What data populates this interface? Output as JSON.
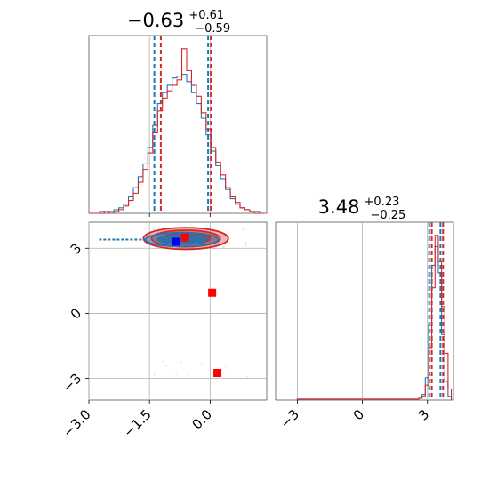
{
  "chart_data": [
    {
      "panel": "top-left",
      "type": "histogram",
      "title": {
        "value": "−0.63",
        "sup": "+0.61",
        "sub": "−0.59"
      },
      "xlim": [
        -3.0,
        1.4
      ],
      "grid": true,
      "bins_x": [
        -2.98,
        -2.86,
        -2.74,
        -2.62,
        -2.5,
        -2.38,
        -2.26,
        -2.14,
        -2.02,
        -1.9,
        -1.78,
        -1.66,
        -1.54,
        -1.42,
        -1.3,
        -1.18,
        -1.06,
        -0.94,
        -0.82,
        -0.7,
        -0.58,
        -0.46,
        -0.34,
        -0.22,
        -0.1,
        0.02,
        0.14,
        0.26,
        0.38,
        0.5,
        0.62,
        0.74,
        0.86,
        0.98,
        1.1,
        1.22
      ],
      "series": [
        {
          "color": "#1f77b4",
          "values": [
            0,
            0,
            1,
            0,
            1,
            2,
            3,
            5,
            9,
            14,
            20,
            27,
            36,
            48,
            60,
            66,
            70,
            74,
            75,
            76,
            72,
            66,
            60,
            52,
            43,
            34,
            26,
            19,
            13,
            8,
            5,
            3,
            2,
            1,
            1,
            0
          ]
        },
        {
          "color": "#d62728",
          "values": [
            0,
            0,
            0,
            1,
            0,
            1,
            2,
            4,
            7,
            11,
            17,
            24,
            33,
            44,
            56,
            63,
            67,
            70,
            73,
            90,
            78,
            70,
            64,
            55,
            46,
            36,
            28,
            21,
            14,
            9,
            6,
            3,
            2,
            1,
            0,
            0
          ]
        }
      ],
      "quantile_lines": [
        {
          "color": "#1f77b4",
          "values": [
            -1.38,
            -0.05
          ]
        },
        {
          "color": "#d62728",
          "values": [
            -1.22,
            0.02
          ]
        }
      ],
      "reference_lines": [
        -1.5,
        0.0
      ]
    },
    {
      "panel": "bottom-left",
      "type": "contour",
      "xlim": [
        -3.0,
        1.4
      ],
      "ylim": [
        -4.0,
        4.2
      ],
      "xticks": [
        "−3.0",
        "−1.5",
        "0.0"
      ],
      "yticks": [
        "−3",
        "0",
        "3"
      ],
      "grid": true,
      "contours": [
        {
          "color": "#d62728",
          "center": [
            -0.6,
            3.45
          ],
          "levels": [
            [
              1.05,
              0.5
            ],
            [
              0.85,
              0.38
            ],
            [
              0.6,
              0.26
            ]
          ]
        },
        {
          "color": "#1f77b4",
          "center": [
            -0.7,
            3.4
          ],
          "levels": [
            [
              0.9,
              0.32
            ],
            [
              0.6,
              0.2
            ]
          ]
        }
      ],
      "scatter_points": [
        {
          "x": -0.85,
          "y": 3.3,
          "color": "#0000ff",
          "label": ""
        },
        {
          "x": -0.62,
          "y": 3.5,
          "color": "#ff0000",
          "label": ""
        },
        {
          "x": 0.05,
          "y": 0.95,
          "color": "#ff0000",
          "label": ""
        },
        {
          "x": 0.18,
          "y": -2.75,
          "color": "#ff0000",
          "label": ""
        }
      ]
    },
    {
      "panel": "bottom-right",
      "type": "histogram",
      "title": {
        "value": "3.48",
        "sup": "+0.23",
        "sub": "−0.25"
      },
      "xlim": [
        -4.0,
        4.2
      ],
      "xticks": [
        "−3",
        "0",
        "3"
      ],
      "grid": true,
      "bins_x": [
        -3.0,
        -2.8,
        2.6,
        2.75,
        2.9,
        3.05,
        3.2,
        3.35,
        3.5,
        3.65,
        3.8,
        3.95,
        4.1
      ],
      "series": [
        {
          "color": "#1f77b4",
          "values": [
            0.5,
            0.5,
            1,
            3,
            12,
            40,
            72,
            82,
            68,
            35,
            10,
            2
          ]
        },
        {
          "color": "#d62728",
          "values": [
            0.5,
            0.5,
            1,
            2,
            8,
            28,
            60,
            88,
            74,
            50,
            25,
            6
          ]
        }
      ],
      "quantile_lines": [
        {
          "color": "#1f77b4",
          "values": [
            3.08,
            3.6
          ]
        },
        {
          "color": "#d62728",
          "values": [
            3.2,
            3.72
          ]
        }
      ],
      "reference_lines": [
        -3,
        0,
        3
      ]
    }
  ]
}
